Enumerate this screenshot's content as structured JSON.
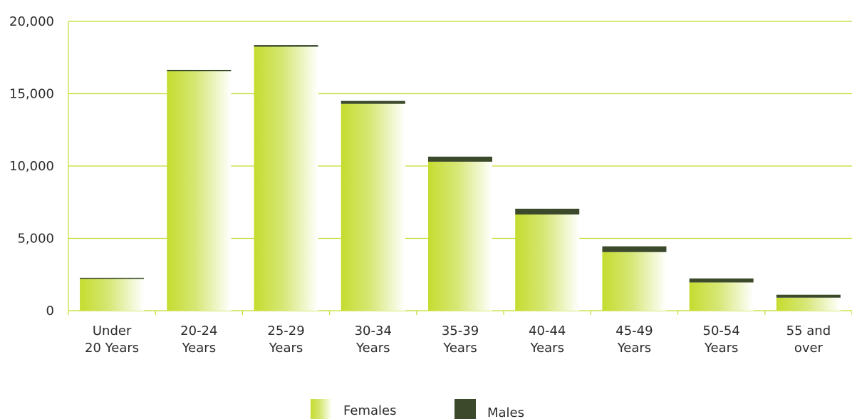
{
  "chart_data": {
    "type": "bar",
    "stacked": true,
    "categories": [
      [
        "Under",
        "20 Years"
      ],
      [
        "20-24",
        "Years"
      ],
      [
        "25-29",
        "Years"
      ],
      [
        "30-34",
        "Years"
      ],
      [
        "35-39",
        "Years"
      ],
      [
        "40-44",
        "Years"
      ],
      [
        "45-49",
        "Years"
      ],
      [
        "50-54",
        "Years"
      ],
      [
        "55 and",
        "over"
      ]
    ],
    "series": [
      {
        "name": "Females",
        "values": [
          2200,
          16550,
          18250,
          14300,
          10300,
          6650,
          4050,
          1950,
          900
        ],
        "color": "#c5dc2f"
      },
      {
        "name": "Males",
        "values": [
          20,
          100,
          120,
          200,
          350,
          400,
          400,
          280,
          200
        ],
        "color": "#3c4a2b"
      }
    ],
    "yticks": [
      "0",
      "5,000",
      "10,000",
      "15,000",
      "20,000"
    ],
    "ylim": [
      0,
      20000
    ],
    "grid": true,
    "legend_position": "bottom"
  }
}
